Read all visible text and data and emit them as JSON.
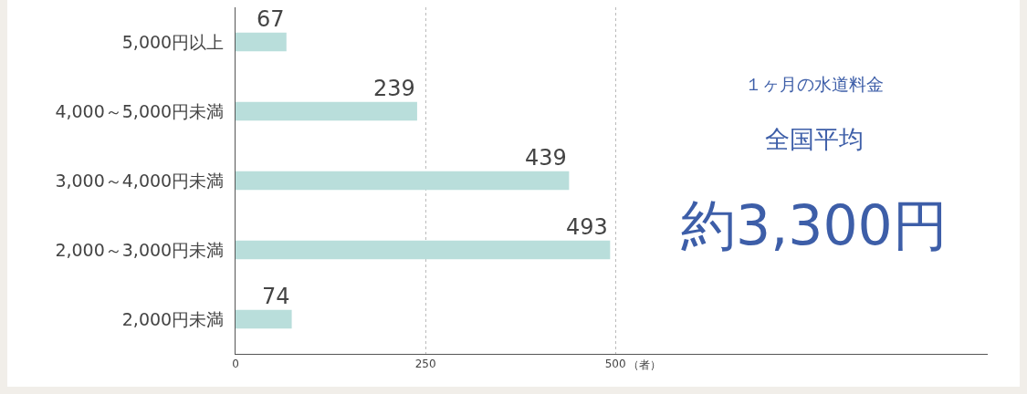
{
  "chart_data": {
    "type": "bar",
    "orientation": "horizontal",
    "categories": [
      "5,000円以上",
      "4,000～5,000円未満",
      "3,000～4,000円未満",
      "2,000～3,000円未満",
      "2,000円未満"
    ],
    "values": [
      67,
      239,
      439,
      493,
      74
    ],
    "color": "#b9dedb",
    "data_labels": true,
    "xlim": [
      0,
      990
    ],
    "xticks": [
      0,
      250,
      500
    ],
    "xlabel": "（者）",
    "grid": "x",
    "annotations": [
      "１ヶ月の水道料金",
      "全国平均",
      "約3,300円"
    ]
  }
}
